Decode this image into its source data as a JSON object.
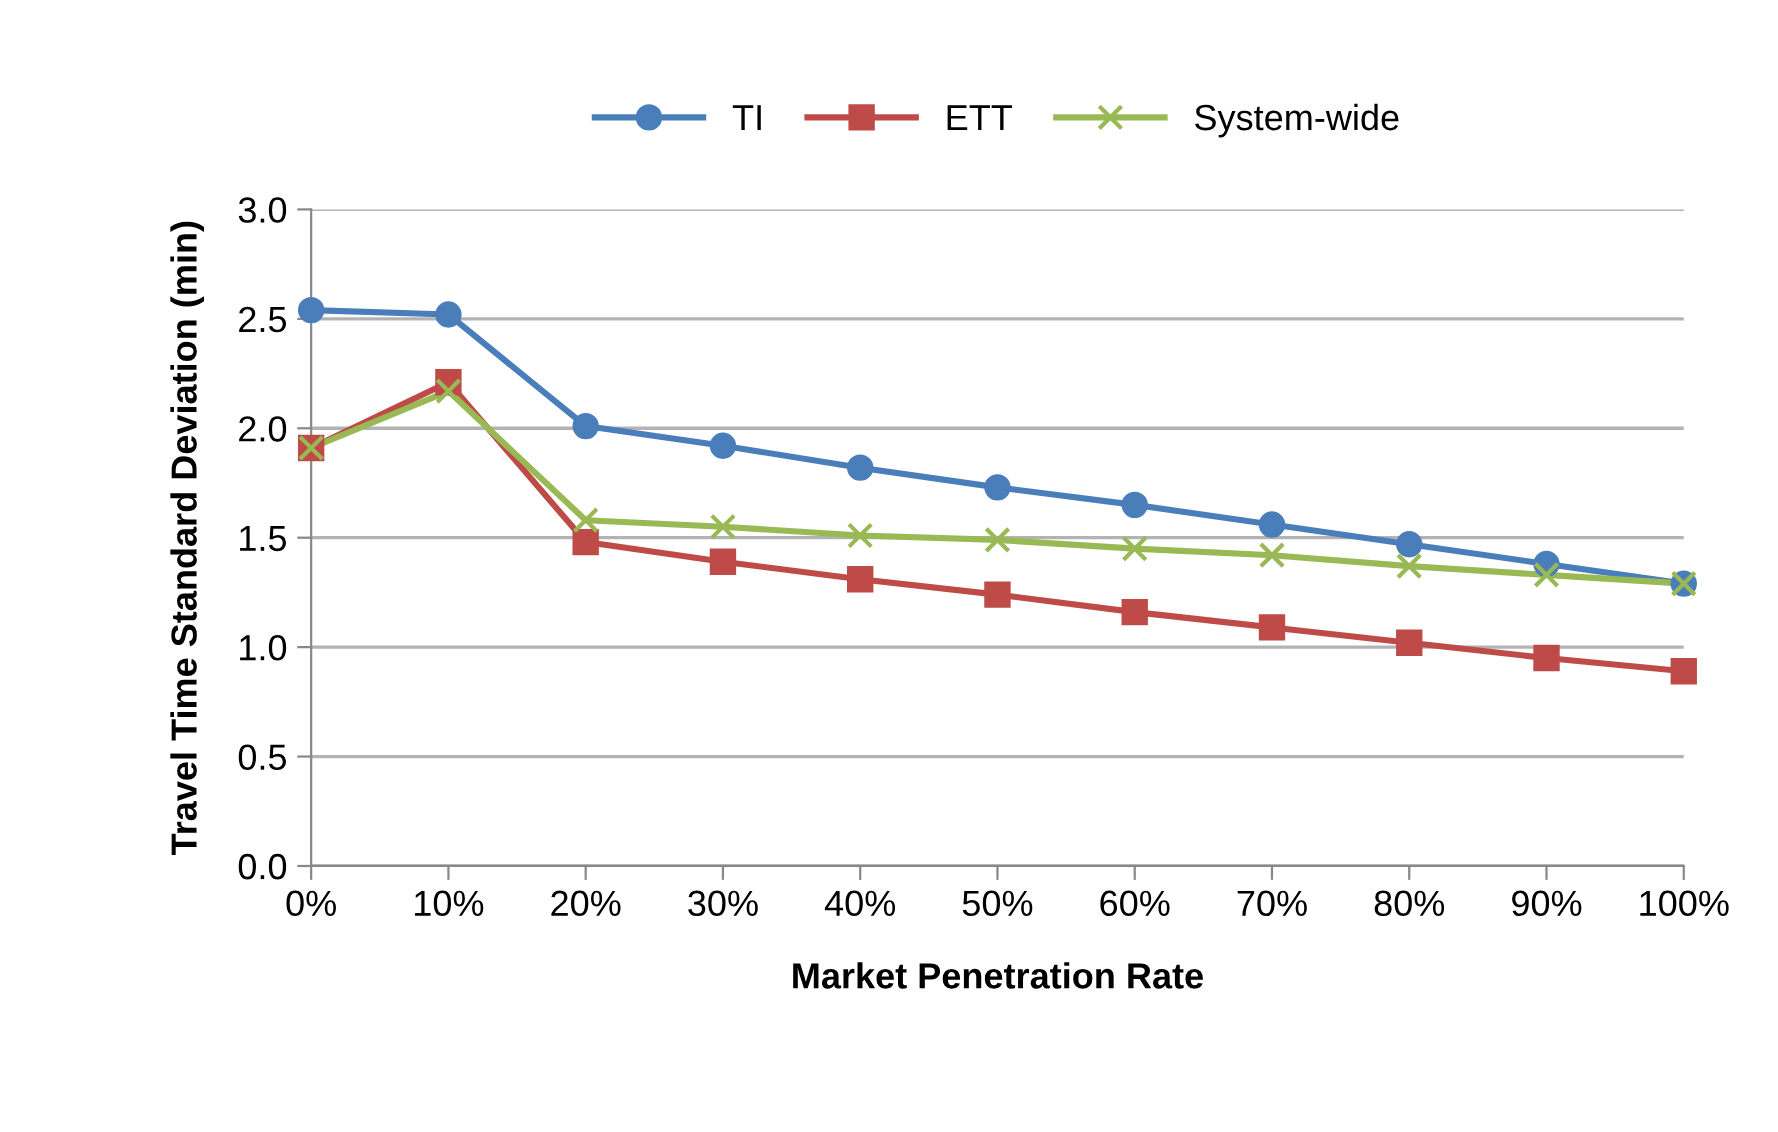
{
  "chart_data": {
    "type": "line",
    "xlabel": "Market Penetration Rate",
    "ylabel": "Travel Time Standard Deviation (min)",
    "categories": [
      "0%",
      "10%",
      "20%",
      "30%",
      "40%",
      "50%",
      "60%",
      "70%",
      "80%",
      "90%",
      "100%"
    ],
    "series": [
      {
        "name": "TI",
        "color": "#4a7ebb",
        "marker": "circle",
        "values": [
          2.54,
          2.52,
          2.01,
          1.92,
          1.82,
          1.73,
          1.65,
          1.56,
          1.47,
          1.38,
          1.29
        ]
      },
      {
        "name": "ETT",
        "color": "#be4b48",
        "marker": "square",
        "values": [
          1.91,
          2.21,
          1.48,
          1.39,
          1.31,
          1.24,
          1.16,
          1.09,
          1.02,
          0.95,
          0.89
        ]
      },
      {
        "name": "System-wide",
        "color": "#98b954",
        "marker": "cross",
        "values": [
          1.91,
          2.17,
          1.58,
          1.55,
          1.51,
          1.49,
          1.45,
          1.42,
          1.37,
          1.33,
          1.29
        ]
      }
    ],
    "ylim": [
      0.0,
      3.0
    ],
    "yticks": [
      {
        "value": 0,
        "label": "0.0"
      },
      {
        "value": 0.5,
        "label": "0.5"
      },
      {
        "value": 1,
        "label": "1.0"
      },
      {
        "value": 1.5,
        "label": "1.5"
      },
      {
        "value": 2,
        "label": "2.0"
      },
      {
        "value": 2.5,
        "label": "2.5"
      },
      {
        "value": 3,
        "label": "3.0"
      }
    ],
    "grid": "y",
    "legend": "top"
  }
}
